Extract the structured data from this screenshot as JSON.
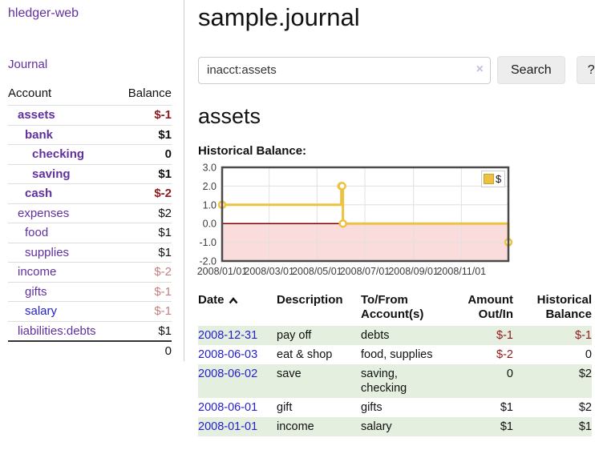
{
  "app": {
    "title": "hledger-web"
  },
  "sidebar": {
    "journal_link": "Journal",
    "accounts": {
      "col_account": "Account",
      "col_balance": "Balance",
      "rows": [
        {
          "name": "assets",
          "indent": 0,
          "bold": true,
          "visited": true,
          "balance": "$-1"
        },
        {
          "name": "bank",
          "indent": 1,
          "bold": true,
          "visited": true,
          "balance": "$1"
        },
        {
          "name": "checking",
          "indent": 2,
          "bold": true,
          "visited": true,
          "balance": "0"
        },
        {
          "name": "saving",
          "indent": 2,
          "bold": true,
          "visited": true,
          "balance": "$1"
        },
        {
          "name": "cash",
          "indent": 1,
          "bold": true,
          "visited": true,
          "balance": "$-2"
        },
        {
          "name": "expenses",
          "indent": 0,
          "bold": false,
          "visited": true,
          "balance": "$2"
        },
        {
          "name": "food",
          "indent": 1,
          "bold": false,
          "visited": true,
          "balance": "$1"
        },
        {
          "name": "supplies",
          "indent": 1,
          "bold": false,
          "visited": true,
          "balance": "$1"
        },
        {
          "name": "income",
          "indent": 0,
          "bold": false,
          "visited": true,
          "balance": "$-2"
        },
        {
          "name": "gifts",
          "indent": 1,
          "bold": false,
          "visited": true,
          "balance": "$-1"
        },
        {
          "name": "salary",
          "indent": 1,
          "bold": false,
          "visited": false,
          "balance": "$-1"
        },
        {
          "name": "liabilities:debts",
          "indent": 0,
          "bold": false,
          "visited": true,
          "balance": "$1"
        }
      ],
      "total": "0"
    }
  },
  "main": {
    "title": "sample.journal",
    "search": {
      "value": "inacct:assets",
      "clear_icon": "×",
      "search_button": "Search",
      "help_button": "?"
    },
    "account_heading": "assets",
    "chart_title": "Historical Balance:"
  },
  "chart_data": {
    "type": "line",
    "step": true,
    "title": "Historical Balance",
    "x_domain": [
      "2008-01-01",
      "2008-12-31"
    ],
    "ylim": [
      -2,
      3
    ],
    "yticks": [
      3,
      2,
      1,
      0,
      -1,
      -2
    ],
    "xticks": [
      {
        "x": "2008-01-01",
        "label": "2008/01/01"
      },
      {
        "x": "2008-03-01",
        "label": "2008/03/01"
      },
      {
        "x": "2008-05-01",
        "label": "2008/05/01"
      },
      {
        "x": "2008-07-01",
        "label": "2008/07/01"
      },
      {
        "x": "2008-09-01",
        "label": "2008/09/01"
      },
      {
        "x": "2008-11-01",
        "label": "2008/11/01"
      }
    ],
    "series": [
      {
        "name": "$",
        "color": "#edc240",
        "points": [
          [
            "2008-01-01",
            1
          ],
          [
            "2008-06-01",
            2
          ],
          [
            "2008-06-02",
            2
          ],
          [
            "2008-06-03",
            0
          ],
          [
            "2008-12-31",
            -1
          ]
        ]
      }
    ],
    "legend": {
      "label": "$",
      "position": "top-right",
      "swatch_color": "#edc240"
    },
    "zero_line_color": "#800000",
    "negative_fill": "#fbdcdc",
    "grid_color": "#e0e0e0",
    "border_color": "#4a4a4a"
  },
  "register": {
    "headers": [
      "Date",
      "Description",
      "To/From\nAccount(s)",
      "Amount\nOut/In",
      "Historical\nBalance"
    ],
    "rows": [
      {
        "date": "2008-12-31",
        "description": "pay off",
        "accounts": "debts",
        "amount": "$-1",
        "balance": "$-1"
      },
      {
        "date": "2008-06-03",
        "description": "eat & shop",
        "accounts": "food, supplies",
        "amount": "$-2",
        "balance": "0"
      },
      {
        "date": "2008-06-02",
        "description": "save",
        "accounts": "saving,\nchecking",
        "amount": "0",
        "balance": "$2"
      },
      {
        "date": "2008-06-01",
        "description": "gift",
        "accounts": "gifts",
        "amount": "$1",
        "balance": "$2"
      },
      {
        "date": "2008-01-01",
        "description": "income",
        "accounts": "salary",
        "amount": "$1",
        "balance": "$1"
      }
    ]
  }
}
